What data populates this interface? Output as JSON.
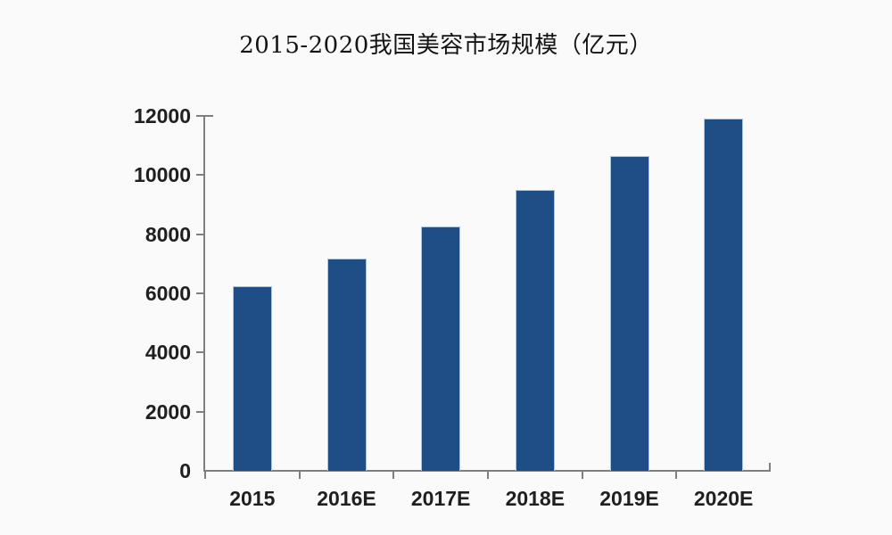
{
  "chart_data": {
    "type": "bar",
    "title": "2015-2020我国美容市场规模（亿元）",
    "categories": [
      "2015",
      "2016E",
      "2017E",
      "2018E",
      "2019E",
      "2020E"
    ],
    "values": [
      6240,
      7180,
      8250,
      9500,
      10640,
      11900
    ],
    "xlabel": "",
    "ylabel": "",
    "ylim": [
      0,
      12000
    ],
    "yticks": [
      0,
      2000,
      4000,
      6000,
      8000,
      10000,
      12000
    ],
    "grid": false,
    "legend": false,
    "bar_color": "#1f4e87",
    "bar_edge_color": "#a8c6e4",
    "axis_color": "#7f7f7f",
    "label_color": "#1f1f1f",
    "background_color": "#fafafb"
  }
}
